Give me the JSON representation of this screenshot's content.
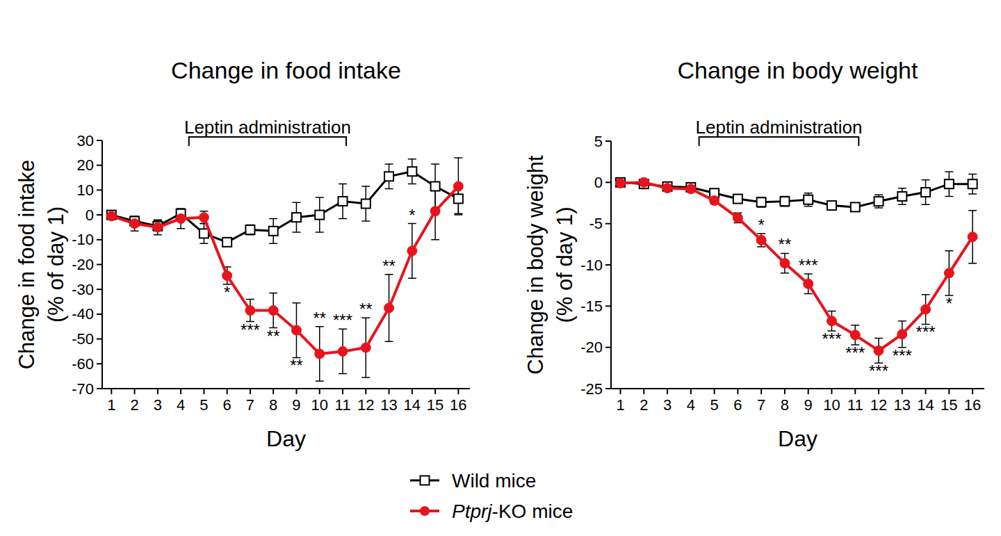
{
  "chart_data": [
    {
      "type": "line",
      "title": "Change in food intake",
      "x_label": "Day",
      "y_label": [
        "Change in food intake",
        "(% of day 1)"
      ],
      "xlim": [
        0.6,
        16.5
      ],
      "xticks": [
        1,
        2,
        3,
        4,
        5,
        6,
        7,
        8,
        9,
        10,
        11,
        12,
        13,
        14,
        15,
        16
      ],
      "ylim": [
        -70,
        30
      ],
      "yticks": [
        -70,
        -60,
        -50,
        -40,
        -30,
        -20,
        -10,
        0,
        10,
        20,
        30
      ],
      "bracket": {
        "text": "Leptin administration",
        "start": 4.35,
        "end": 11.15
      },
      "legend": "bottom",
      "series": [
        {
          "name": "Wild mice",
          "color": "#000000",
          "marker": "square",
          "x": [
            1,
            2,
            3,
            4,
            5,
            6,
            7,
            8,
            9,
            10,
            11,
            12,
            13,
            14,
            15,
            16
          ],
          "values": [
            0,
            -2.5,
            -4.5,
            0.5,
            -7.5,
            -11,
            -6,
            -6.5,
            -1,
            0,
            5.5,
            4.5,
            15.5,
            17.5,
            11.5,
            6.5
          ],
          "error": [
            1,
            1.5,
            2,
            2,
            4,
            1,
            2,
            5,
            6,
            7,
            7,
            7,
            5,
            5,
            9,
            6
          ]
        },
        {
          "name": "Ptprj-KO mice",
          "color": "#e8141c",
          "marker": "circle",
          "x": [
            1,
            2,
            3,
            4,
            5,
            6,
            7,
            8,
            9,
            10,
            11,
            12,
            13,
            14,
            15,
            16
          ],
          "values": [
            -0.5,
            -3.5,
            -5,
            -1.5,
            -1,
            -24.5,
            -38.5,
            -38.5,
            -46.5,
            -56,
            -55,
            -53.5,
            -37.5,
            -14.5,
            1.5,
            11.5
          ],
          "error": [
            1,
            3,
            3,
            4,
            2.5,
            3.5,
            4.5,
            7,
            11,
            11,
            9,
            12,
            13.5,
            11,
            11.5,
            11.5
          ]
        }
      ],
      "annotations": [
        {
          "x": 6,
          "text": "*",
          "position": "below"
        },
        {
          "x": 7,
          "text": "***",
          "position": "below"
        },
        {
          "x": 8,
          "text": "**",
          "position": "below"
        },
        {
          "x": 9,
          "text": "**",
          "position": "below"
        },
        {
          "x": 10,
          "text": "**",
          "position": "above"
        },
        {
          "x": 11,
          "text": "***",
          "position": "above"
        },
        {
          "x": 12,
          "text": "**",
          "position": "above"
        },
        {
          "x": 13,
          "text": "**",
          "position": "above"
        },
        {
          "x": 14,
          "text": "*",
          "position": "above"
        }
      ]
    },
    {
      "type": "line",
      "title": "Change in body weight",
      "x_label": "Day",
      "y_label": [
        "Change in body weight",
        "(% of day 1)"
      ],
      "xlim": [
        0.6,
        16.5
      ],
      "xticks": [
        1,
        2,
        3,
        4,
        5,
        6,
        7,
        8,
        9,
        10,
        11,
        12,
        13,
        14,
        15,
        16
      ],
      "ylim": [
        -25,
        5
      ],
      "yticks": [
        -25,
        -20,
        -15,
        -10,
        -5,
        0,
        5
      ],
      "bracket": {
        "text": "Leptin administration",
        "start": 4.35,
        "end": 11.15
      },
      "series": [
        {
          "name": "Wild mice",
          "color": "#000000",
          "marker": "square",
          "x": [
            1,
            2,
            3,
            4,
            5,
            6,
            7,
            8,
            9,
            10,
            11,
            12,
            13,
            14,
            15,
            16
          ],
          "values": [
            0,
            -0.2,
            -0.5,
            -0.6,
            -1.3,
            -2,
            -2.4,
            -2.3,
            -2.1,
            -2.8,
            -3,
            -2.3,
            -1.7,
            -1.2,
            -0.2,
            -0.2
          ],
          "error": [
            0.2,
            0.3,
            0.3,
            0.3,
            0.4,
            0.4,
            0.6,
            0.6,
            0.8,
            0.5,
            0.5,
            0.8,
            1,
            1.5,
            1.5,
            1.2
          ]
        },
        {
          "name": "Ptprj-KO mice",
          "color": "#e8141c",
          "marker": "circle",
          "x": [
            1,
            2,
            3,
            4,
            5,
            6,
            7,
            8,
            9,
            10,
            11,
            12,
            13,
            14,
            15,
            16
          ],
          "values": [
            -0.1,
            0,
            -0.7,
            -0.8,
            -2.2,
            -4.3,
            -7,
            -9.8,
            -12.3,
            -16.8,
            -18.5,
            -20.4,
            -18.4,
            -15.4,
            -11,
            -6.6
          ],
          "error": [
            0.2,
            0.3,
            0.3,
            0.3,
            0.4,
            0.6,
            0.8,
            1.2,
            1.2,
            1.2,
            1.2,
            1.5,
            1.6,
            1.8,
            2.7,
            3.2
          ]
        }
      ],
      "annotations": [
        {
          "x": 7,
          "text": "*",
          "position": "above"
        },
        {
          "x": 8,
          "text": "**",
          "position": "above"
        },
        {
          "x": 9,
          "text": "***",
          "position": "above"
        },
        {
          "x": 10,
          "text": "***",
          "position": "below"
        },
        {
          "x": 11,
          "text": "***",
          "position": "below"
        },
        {
          "x": 12,
          "text": "***",
          "position": "below"
        },
        {
          "x": 13,
          "text": "***",
          "position": "below"
        },
        {
          "x": 14,
          "text": "***",
          "position": "below"
        },
        {
          "x": 15,
          "text": "*",
          "position": "below"
        }
      ]
    }
  ]
}
